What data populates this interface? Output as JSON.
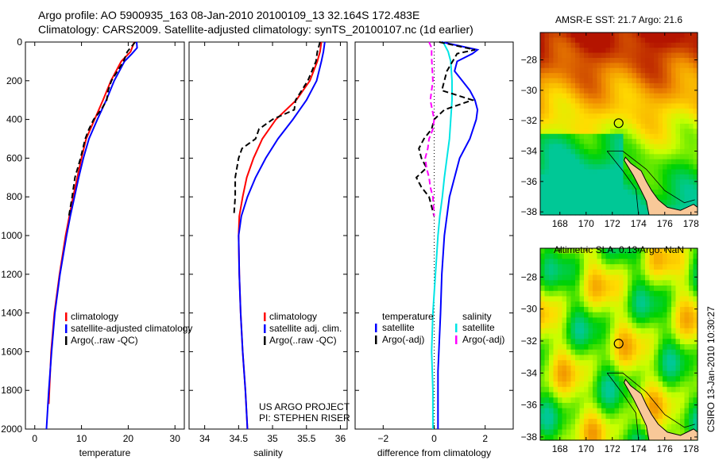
{
  "header": {
    "line1": "Argo profile: AO 5900935_163 08-Jan-2010 20100109_13 32.164S 172.483E",
    "line2": "Climatology: CARS2009. Satellite-adjusted climatology: synTS_20100107.nc (1d earlier)"
  },
  "stamp": "CSIRO 13-Jan-2010 10:30:27",
  "chart_data": [
    {
      "type": "line",
      "name": "temperature",
      "xlabel": "temperature",
      "ylabel": "depth",
      "xlim": [
        -2,
        32
      ],
      "ylim": [
        2000,
        0
      ],
      "xticks": [
        0,
        10,
        20,
        30
      ],
      "yticks": [
        0,
        200,
        400,
        600,
        800,
        1000,
        1200,
        1400,
        1600,
        1800,
        2000
      ],
      "legend": [
        "climatology",
        "satellite-adjusted climatology",
        "Argo(..raw -QC)"
      ],
      "legend_position": "lower-right",
      "series": [
        {
          "name": "climatology",
          "color": "#ff0000",
          "dash": "",
          "depth": [
            0,
            50,
            100,
            200,
            300,
            400,
            500,
            600,
            700,
            800,
            900,
            1000,
            1200,
            1400,
            1600,
            1870
          ],
          "values": [
            21.3,
            20.5,
            18.5,
            16.3,
            14.6,
            12.8,
            11.0,
            10.0,
            9.1,
            8.2,
            7.4,
            6.6,
            5.3,
            4.2,
            3.5,
            3.0
          ]
        },
        {
          "name": "satellite-adjusted climatology",
          "color": "#0000ff",
          "dash": "",
          "depth": [
            0,
            30,
            60,
            100,
            200,
            300,
            400,
            500,
            600,
            700,
            800,
            900,
            1000,
            1200,
            1400,
            1600,
            1800,
            2000
          ],
          "values": [
            21.8,
            21.9,
            20.8,
            19.2,
            17.0,
            15.3,
            13.4,
            11.6,
            10.4,
            9.4,
            8.5,
            7.6,
            6.8,
            5.4,
            4.3,
            3.6,
            3.0,
            2.5
          ]
        },
        {
          "name": "Argo(..raw -QC)",
          "color": "#000000",
          "dash": "7,4",
          "depth": [
            0,
            50,
            100,
            200,
            250,
            300,
            350,
            400,
            450,
            500,
            600,
            700,
            800,
            900
          ],
          "values": [
            21.5,
            19.8,
            19.0,
            16.4,
            15.7,
            15.4,
            14.2,
            12.6,
            11.6,
            10.8,
            9.8,
            8.6,
            8.0,
            7.3
          ]
        }
      ]
    },
    {
      "type": "line",
      "name": "salinity",
      "xlabel": "salinity",
      "ylabel": "depth",
      "xlim": [
        33.77,
        36.1
      ],
      "ylim": [
        2000,
        0
      ],
      "xticks": [
        34,
        34.5,
        35,
        35.5,
        36
      ],
      "legend": [
        "climatology",
        "satellite adj. clim.",
        "Argo(..raw -QC)"
      ],
      "legend_position": "lower-right",
      "annotation": [
        "US ARGO PROJECT",
        "PI: STEPHEN RISER"
      ],
      "series": [
        {
          "name": "climatology",
          "color": "#ff0000",
          "dash": "",
          "depth": [
            0,
            50,
            100,
            200,
            300,
            400,
            500,
            600,
            700,
            800,
            900,
            1000,
            1200,
            1400,
            1600,
            1800,
            2000
          ],
          "values": [
            35.72,
            35.7,
            35.66,
            35.55,
            35.35,
            35.05,
            34.85,
            34.72,
            34.62,
            34.56,
            34.51,
            34.5,
            34.51,
            34.53,
            34.56,
            34.6,
            34.63
          ]
        },
        {
          "name": "satellite adj. clim.",
          "color": "#0000ff",
          "dash": "",
          "depth": [
            0,
            50,
            100,
            200,
            300,
            400,
            500,
            600,
            700,
            800,
            900,
            1000,
            1200,
            1400,
            1600,
            1800,
            2000
          ],
          "values": [
            35.77,
            35.75,
            35.72,
            35.65,
            35.5,
            35.3,
            35.08,
            34.9,
            34.75,
            34.63,
            34.54,
            34.5,
            34.51,
            34.53,
            34.56,
            34.6,
            34.63
          ]
        },
        {
          "name": "Argo(..raw -QC)",
          "color": "#000000",
          "dash": "7,4",
          "depth": [
            0,
            50,
            100,
            200,
            300,
            350,
            400,
            450,
            500,
            550,
            600,
            700,
            800,
            900
          ],
          "values": [
            35.7,
            35.66,
            35.64,
            35.52,
            35.34,
            35.32,
            35.0,
            34.8,
            34.75,
            34.55,
            34.5,
            34.45,
            34.45,
            34.43
          ]
        }
      ]
    },
    {
      "type": "line",
      "name": "difference",
      "xlabel": "difference from climatology",
      "ylabel": "depth",
      "xlim": [
        -3.1,
        3.1
      ],
      "ylim": [
        2000,
        0
      ],
      "xticks": [
        -2,
        0,
        2
      ],
      "legend_titles": [
        "temperature",
        "salinity"
      ],
      "legend": [
        "satellite",
        "Argo(-adj)",
        "satellite",
        "Argo(-adj)"
      ],
      "series": [
        {
          "name": "temperature satellite",
          "color": "#0000ff",
          "dash": "",
          "depth": [
            0,
            40,
            60,
            100,
            150,
            200,
            250,
            300,
            350,
            400,
            500,
            600,
            700,
            800,
            1000,
            1200,
            1400,
            1700,
            2000
          ],
          "values": [
            0.3,
            1.7,
            1.5,
            0.9,
            0.8,
            1.1,
            1.4,
            1.6,
            1.7,
            1.65,
            1.4,
            1.0,
            0.8,
            0.6,
            0.4,
            0.3,
            0.25,
            0.15,
            0.15
          ]
        },
        {
          "name": "salinity satellite",
          "color": "#00e5e5",
          "dash": "",
          "depth": [
            0,
            50,
            100,
            200,
            300,
            400,
            500,
            600,
            700,
            800,
            900,
            1000,
            1200,
            1400,
            1600,
            1800,
            2000
          ],
          "values": [
            0.35,
            0.55,
            0.65,
            0.7,
            0.7,
            0.65,
            0.6,
            0.5,
            0.4,
            0.32,
            0.22,
            0.15,
            0.05,
            -0.05,
            -0.1,
            -0.05,
            -0.05
          ]
        },
        {
          "name": "temperature Argo(-adj)",
          "color": "#000000",
          "dash": "7,4",
          "depth": [
            0,
            40,
            60,
            150,
            250,
            300,
            350,
            400,
            450,
            500,
            550,
            600,
            650,
            700,
            750,
            800,
            900
          ],
          "values": [
            0.2,
            1.6,
            0.9,
            0.5,
            0.3,
            1.5,
            0.4,
            0.0,
            -0.1,
            -0.4,
            -0.6,
            -0.5,
            -0.3,
            -0.7,
            -0.5,
            -0.2,
            0.0
          ]
        },
        {
          "name": "salinity Argo(-adj)",
          "color": "#ff00ff",
          "dash": "7,4",
          "depth": [
            0,
            30,
            80,
            200,
            300,
            400,
            450,
            500,
            550,
            600,
            650,
            700,
            750,
            800,
            900
          ],
          "values": [
            -0.2,
            -0.1,
            -0.1,
            -0.05,
            -0.15,
            0.0,
            -0.05,
            -0.2,
            -0.25,
            -0.35,
            -0.3,
            -0.2,
            -0.15,
            -0.05,
            0.0
          ]
        }
      ]
    },
    {
      "type": "heatmap",
      "name": "sst-map",
      "title": "AMSR-E SST: 21.7 Argo: 21.6",
      "xlim": [
        166.5,
        178.5
      ],
      "ylim": [
        -38.2,
        -26.2
      ],
      "xticks": [
        168,
        170,
        172,
        174,
        176,
        178
      ],
      "yticks": [
        -28,
        -30,
        -32,
        -34,
        -36,
        -38
      ],
      "argo_position": [
        172.483,
        -32.164
      ]
    },
    {
      "type": "heatmap",
      "name": "sla-map",
      "title": "Altimetric SLA: 0.13 Argo: NaN",
      "xlim": [
        166.5,
        178.5
      ],
      "ylim": [
        -38.2,
        -26.2
      ],
      "xticks": [
        168,
        170,
        172,
        174,
        176,
        178
      ],
      "yticks": [
        -28,
        -30,
        -32,
        -34,
        -36,
        -38
      ],
      "argo_position": [
        172.483,
        -32.164
      ]
    }
  ]
}
